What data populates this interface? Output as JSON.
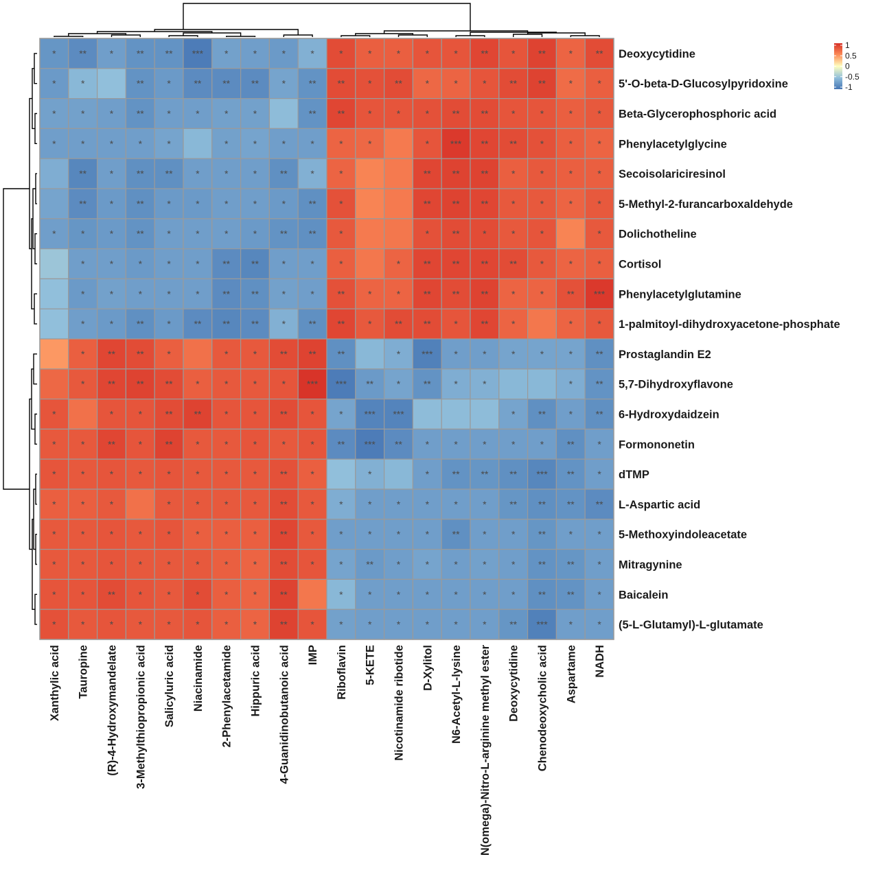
{
  "chart_data": {
    "type": "heatmap",
    "title": "",
    "color_scale": {
      "min": -1,
      "max": 1,
      "stops": [
        {
          "value": -1,
          "color": "#4575b4"
        },
        {
          "value": -0.5,
          "color": "#91bfdb"
        },
        {
          "value": 0,
          "color": "#ffffbf"
        },
        {
          "value": 0.5,
          "color": "#fc8d59"
        },
        {
          "value": 1,
          "color": "#d73027"
        }
      ],
      "legend_ticks": [
        "1",
        "0.5",
        "0",
        "-0.5",
        "-1"
      ]
    },
    "rows": [
      "Deoxycytidine",
      "5'-O-beta-D-Glucosylpyridoxine",
      "Beta-Glycerophosphoric acid",
      "Phenylacetylglycine",
      "Secoisolariciresinol",
      "5-Methyl-2-furancarboxaldehyde",
      "Dolichotheline",
      "Cortisol",
      "Phenylacetylglutamine",
      "1-palmitoyl-dihydroxyacetone-phosphate",
      "Prostaglandin E2",
      "5,7-Dihydroxyflavone",
      "6-Hydroxydaidzein",
      "Formononetin",
      "dTMP",
      "L-Aspartic acid",
      "5-Methoxyindoleacetate",
      "Mitragynine",
      "Baicalein",
      "(5-L-Glutamyl)-L-glutamate"
    ],
    "columns": [
      "Xanthylic acid",
      "Tauropine",
      "(R)-4-Hydroxymandelate",
      "3-Methylthiopropionic acid",
      "Salicyluric acid",
      "Niacinamide",
      "2-Phenylacetamide",
      "Hippuric acid",
      "4-Guanidinobutanoic acid",
      "IMP",
      "Riboflavin",
      "5-KETE",
      "Nicotinamide ribotide",
      "D-Xylitol",
      "N6-Acetyl-L-lysine",
      "N(omega)-Nitro-L-arginine methyl ester",
      "Deoxycytidine",
      "Chenodeoxycholic acid",
      "Aspartame",
      "NADH"
    ],
    "values": [
      [
        -0.78,
        -0.85,
        -0.72,
        -0.8,
        -0.8,
        -0.95,
        -0.7,
        -0.72,
        -0.75,
        -0.6,
        0.85,
        0.75,
        0.75,
        0.8,
        0.8,
        0.88,
        0.8,
        0.9,
        0.72,
        0.85
      ],
      [
        -0.75,
        -0.55,
        -0.5,
        -0.8,
        -0.75,
        -0.85,
        -0.85,
        -0.85,
        -0.68,
        -0.8,
        0.85,
        0.82,
        0.85,
        0.7,
        0.72,
        0.8,
        0.85,
        0.9,
        0.68,
        0.75
      ],
      [
        -0.7,
        -0.7,
        -0.72,
        -0.8,
        -0.72,
        -0.72,
        -0.7,
        -0.7,
        -0.52,
        -0.8,
        0.88,
        0.8,
        0.8,
        0.82,
        0.85,
        0.85,
        0.8,
        0.8,
        0.75,
        0.78
      ],
      [
        -0.72,
        -0.72,
        -0.72,
        -0.72,
        -0.68,
        -0.55,
        -0.7,
        -0.68,
        -0.72,
        -0.72,
        0.72,
        0.7,
        0.6,
        0.8,
        0.95,
        0.88,
        0.85,
        0.82,
        0.75,
        0.72
      ],
      [
        -0.62,
        -0.88,
        -0.72,
        -0.82,
        -0.82,
        -0.72,
        -0.72,
        -0.72,
        -0.82,
        -0.6,
        0.72,
        0.55,
        0.6,
        0.88,
        0.9,
        0.9,
        0.75,
        0.78,
        0.75,
        0.75
      ],
      [
        -0.68,
        -0.85,
        -0.75,
        -0.82,
        -0.75,
        -0.75,
        -0.72,
        -0.72,
        -0.75,
        -0.82,
        0.82,
        0.55,
        0.6,
        0.88,
        0.9,
        0.88,
        0.78,
        0.78,
        0.72,
        0.78
      ],
      [
        -0.72,
        -0.78,
        -0.75,
        -0.8,
        -0.72,
        -0.72,
        -0.72,
        -0.75,
        -0.8,
        -0.82,
        0.78,
        0.6,
        0.62,
        0.82,
        0.85,
        0.85,
        0.78,
        0.8,
        0.55,
        0.78
      ],
      [
        -0.45,
        -0.72,
        -0.72,
        -0.75,
        -0.72,
        -0.72,
        -0.85,
        -0.88,
        -0.72,
        -0.72,
        0.75,
        0.62,
        0.72,
        0.88,
        0.88,
        0.88,
        0.85,
        0.78,
        0.72,
        0.75
      ],
      [
        -0.5,
        -0.75,
        -0.7,
        -0.72,
        -0.72,
        -0.72,
        -0.85,
        -0.82,
        -0.7,
        -0.72,
        0.82,
        0.72,
        0.72,
        0.88,
        0.85,
        0.9,
        0.72,
        0.72,
        0.82,
        0.95
      ],
      [
        -0.5,
        -0.72,
        -0.75,
        -0.82,
        -0.75,
        -0.85,
        -0.88,
        -0.85,
        -0.6,
        -0.82,
        0.88,
        0.78,
        0.85,
        0.85,
        0.8,
        0.88,
        0.72,
        0.62,
        0.72,
        0.78
      ],
      [
        0.45,
        0.75,
        0.88,
        0.85,
        0.75,
        0.65,
        0.78,
        0.78,
        0.85,
        0.9,
        -0.82,
        -0.55,
        -0.62,
        -0.92,
        -0.72,
        -0.72,
        -0.68,
        -0.68,
        -0.68,
        -0.82
      ],
      [
        0.7,
        0.78,
        0.88,
        0.9,
        0.85,
        0.75,
        0.78,
        0.78,
        0.8,
        0.98,
        -0.95,
        -0.75,
        -0.68,
        -0.8,
        -0.62,
        -0.6,
        -0.55,
        -0.55,
        -0.62,
        -0.8
      ],
      [
        0.8,
        0.65,
        0.8,
        0.8,
        0.85,
        0.9,
        0.8,
        0.8,
        0.85,
        0.8,
        -0.68,
        -0.9,
        -0.9,
        -0.52,
        -0.52,
        -0.52,
        -0.68,
        -0.82,
        -0.72,
        -0.82
      ],
      [
        0.78,
        0.78,
        0.88,
        0.8,
        0.9,
        0.78,
        0.78,
        0.8,
        0.78,
        0.8,
        -0.85,
        -0.95,
        -0.85,
        -0.72,
        -0.72,
        -0.72,
        -0.72,
        -0.72,
        -0.82,
        -0.72
      ],
      [
        0.8,
        0.78,
        0.8,
        0.78,
        0.8,
        0.78,
        0.78,
        0.78,
        0.82,
        0.75,
        -0.5,
        -0.6,
        -0.55,
        -0.72,
        -0.8,
        -0.78,
        -0.82,
        -0.88,
        -0.8,
        -0.72
      ],
      [
        0.75,
        0.75,
        0.78,
        0.65,
        0.78,
        0.78,
        0.78,
        0.78,
        0.85,
        0.78,
        -0.62,
        -0.72,
        -0.72,
        -0.72,
        -0.72,
        -0.72,
        -0.78,
        -0.82,
        -0.8,
        -0.85
      ],
      [
        0.78,
        0.78,
        0.8,
        0.78,
        0.8,
        0.75,
        0.75,
        0.75,
        0.88,
        0.78,
        -0.72,
        -0.72,
        -0.72,
        -0.72,
        -0.82,
        -0.72,
        -0.72,
        -0.78,
        -0.72,
        -0.72
      ],
      [
        0.78,
        0.78,
        0.8,
        0.78,
        0.78,
        0.78,
        0.75,
        0.72,
        0.85,
        0.8,
        -0.68,
        -0.75,
        -0.72,
        -0.68,
        -0.72,
        -0.7,
        -0.72,
        -0.8,
        -0.78,
        -0.72
      ],
      [
        0.8,
        0.8,
        0.85,
        0.8,
        0.78,
        0.85,
        0.75,
        0.72,
        0.9,
        0.62,
        -0.55,
        -0.72,
        -0.72,
        -0.72,
        -0.72,
        -0.72,
        -0.72,
        -0.82,
        -0.8,
        -0.72
      ],
      [
        0.82,
        0.78,
        0.8,
        0.78,
        0.78,
        0.8,
        0.75,
        0.72,
        0.9,
        0.8,
        -0.7,
        -0.72,
        -0.72,
        -0.72,
        -0.72,
        -0.72,
        -0.78,
        -0.92,
        -0.72,
        -0.72
      ]
    ],
    "significance": [
      [
        "*",
        "**",
        "*",
        "**",
        "**",
        "***",
        "*",
        "*",
        "*",
        "*",
        "*",
        "*",
        "*",
        "*",
        "*",
        "**",
        "*",
        "**",
        "*",
        "**"
      ],
      [
        "*",
        "*",
        "",
        "**",
        "*",
        "**",
        "**",
        "**",
        "*",
        "**",
        "**",
        "*",
        "**",
        "*",
        "*",
        "*",
        "**",
        "**",
        "*",
        "*"
      ],
      [
        "*",
        "*",
        "*",
        "**",
        "*",
        "*",
        "*",
        "*",
        "",
        "**",
        "**",
        "*",
        "*",
        "*",
        "**",
        "**",
        "*",
        "*",
        "*",
        "*"
      ],
      [
        "*",
        "*",
        "*",
        "*",
        "*",
        "",
        "*",
        "*",
        "*",
        "*",
        "*",
        "*",
        "",
        "*",
        "***",
        "**",
        "**",
        "*",
        "*",
        "*"
      ],
      [
        "",
        "**",
        "*",
        "**",
        "**",
        "*",
        "*",
        "*",
        "**",
        "*",
        "*",
        "",
        "",
        "**",
        "**",
        "**",
        "*",
        "*",
        "*",
        "*"
      ],
      [
        "",
        "**",
        "*",
        "**",
        "*",
        "*",
        "*",
        "*",
        "*",
        "**",
        "*",
        "",
        "",
        "**",
        "**",
        "**",
        "*",
        "*",
        "*",
        "*"
      ],
      [
        "*",
        "*",
        "*",
        "**",
        "*",
        "*",
        "*",
        "*",
        "**",
        "**",
        "*",
        "",
        "",
        "*",
        "**",
        "*",
        "*",
        "*",
        "",
        "*"
      ],
      [
        "",
        "*",
        "*",
        "*",
        "*",
        "*",
        "**",
        "**",
        "*",
        "*",
        "*",
        "",
        "*",
        "**",
        "**",
        "**",
        "**",
        "*",
        "*",
        "*"
      ],
      [
        "",
        "*",
        "*",
        "*",
        "*",
        "*",
        "**",
        "**",
        "*",
        "*",
        "**",
        "*",
        "*",
        "**",
        "**",
        "**",
        "*",
        "*",
        "**",
        "***"
      ],
      [
        "",
        "*",
        "*",
        "**",
        "*",
        "**",
        "**",
        "**",
        "*",
        "**",
        "**",
        "*",
        "**",
        "**",
        "*",
        "**",
        "*",
        "",
        "*",
        "*"
      ],
      [
        "",
        "*",
        "**",
        "**",
        "*",
        "",
        "*",
        "*",
        "**",
        "**",
        "**",
        "",
        "*",
        "***",
        "*",
        "*",
        "*",
        "*",
        "*",
        "**"
      ],
      [
        "",
        "*",
        "**",
        "**",
        "**",
        "*",
        "*",
        "*",
        "*",
        "***",
        "***",
        "**",
        "*",
        "**",
        "*",
        "*",
        "",
        "",
        "*",
        "**"
      ],
      [
        "*",
        "",
        "*",
        "*",
        "**",
        "**",
        "*",
        "*",
        "**",
        "*",
        "*",
        "***",
        "***",
        "",
        "",
        "",
        "*",
        "**",
        "*",
        "**"
      ],
      [
        "*",
        "*",
        "**",
        "*",
        "**",
        "*",
        "*",
        "*",
        "*",
        "*",
        "**",
        "***",
        "**",
        "*",
        "*",
        "*",
        "*",
        "*",
        "**",
        "*"
      ],
      [
        "*",
        "*",
        "*",
        "*",
        "*",
        "*",
        "*",
        "*",
        "**",
        "*",
        "",
        "*",
        "",
        "*",
        "**",
        "**",
        "**",
        "***",
        "**",
        "*"
      ],
      [
        "*",
        "*",
        "*",
        "",
        "*",
        "*",
        "*",
        "*",
        "**",
        "*",
        "*",
        "*",
        "*",
        "*",
        "*",
        "*",
        "**",
        "**",
        "**",
        "**"
      ],
      [
        "*",
        "*",
        "*",
        "*",
        "*",
        "*",
        "*",
        "*",
        "**",
        "*",
        "*",
        "*",
        "*",
        "*",
        "**",
        "*",
        "*",
        "**",
        "*",
        "*"
      ],
      [
        "*",
        "*",
        "*",
        "*",
        "*",
        "*",
        "*",
        "*",
        "**",
        "*",
        "*",
        "**",
        "*",
        "*",
        "*",
        "*",
        "*",
        "**",
        "**",
        "*"
      ],
      [
        "*",
        "*",
        "**",
        "*",
        "*",
        "*",
        "*",
        "*",
        "**",
        "",
        "*",
        "*",
        "*",
        "*",
        "*",
        "*",
        "*",
        "**",
        "**",
        "*"
      ],
      [
        "*",
        "*",
        "*",
        "*",
        "*",
        "*",
        "*",
        "*",
        "**",
        "*",
        "*",
        "*",
        "*",
        "*",
        "*",
        "*",
        "**",
        "***",
        "*",
        "*"
      ]
    ]
  }
}
